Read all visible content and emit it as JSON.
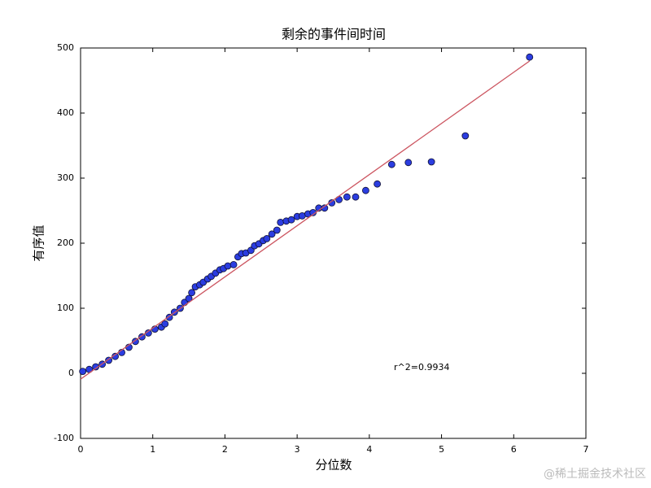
{
  "chart_data": {
    "type": "scatter",
    "title": "剩余的事件间时间",
    "x_label": "分位数",
    "y_label": "有序值",
    "annotation": "r^2=0.9934",
    "watermark": "@稀土掘金技术社区",
    "xlim": [
      0,
      7
    ],
    "ylim": [
      -100,
      500
    ],
    "xticks": [
      0,
      1,
      2,
      3,
      4,
      5,
      6,
      7
    ],
    "yticks": [
      -100,
      0,
      100,
      200,
      300,
      400,
      500
    ],
    "grid": false,
    "series": [
      {
        "kind": "scatter",
        "color": "#2b3de0",
        "edge_color": "#111133",
        "x": [
          0.03,
          0.12,
          0.21,
          0.3,
          0.39,
          0.48,
          0.57,
          0.67,
          0.76,
          0.85,
          0.94,
          1.03,
          1.12,
          1.17,
          1.23,
          1.3,
          1.38,
          1.44,
          1.5,
          1.54,
          1.59,
          1.65,
          1.7,
          1.76,
          1.81,
          1.87,
          1.93,
          1.98,
          2.04,
          2.12,
          2.18,
          2.23,
          2.29,
          2.36,
          2.41,
          2.47,
          2.53,
          2.58,
          2.65,
          2.72,
          2.77,
          2.85,
          2.92,
          3.0,
          3.07,
          3.15,
          3.22,
          3.3,
          3.38,
          3.48,
          3.58,
          3.69,
          3.81,
          3.95,
          4.11,
          4.31,
          4.54,
          4.86,
          5.33,
          6.22
        ],
        "values": [
          3,
          6,
          10,
          14,
          20,
          26,
          32,
          40,
          49,
          56,
          62,
          68,
          71,
          76,
          86,
          94,
          100,
          109,
          115,
          124,
          133,
          136,
          140,
          145,
          149,
          154,
          159,
          161,
          165,
          167,
          179,
          184,
          185,
          189,
          196,
          199,
          204,
          207,
          214,
          220,
          232,
          234,
          236,
          241,
          242,
          245,
          247,
          254,
          254,
          262,
          267,
          271,
          271,
          281,
          291,
          321,
          324,
          325,
          365,
          486
        ]
      },
      {
        "kind": "line",
        "color": "#cc5560",
        "x": [
          0,
          6.22
        ],
        "values": [
          -9,
          480
        ]
      }
    ]
  }
}
